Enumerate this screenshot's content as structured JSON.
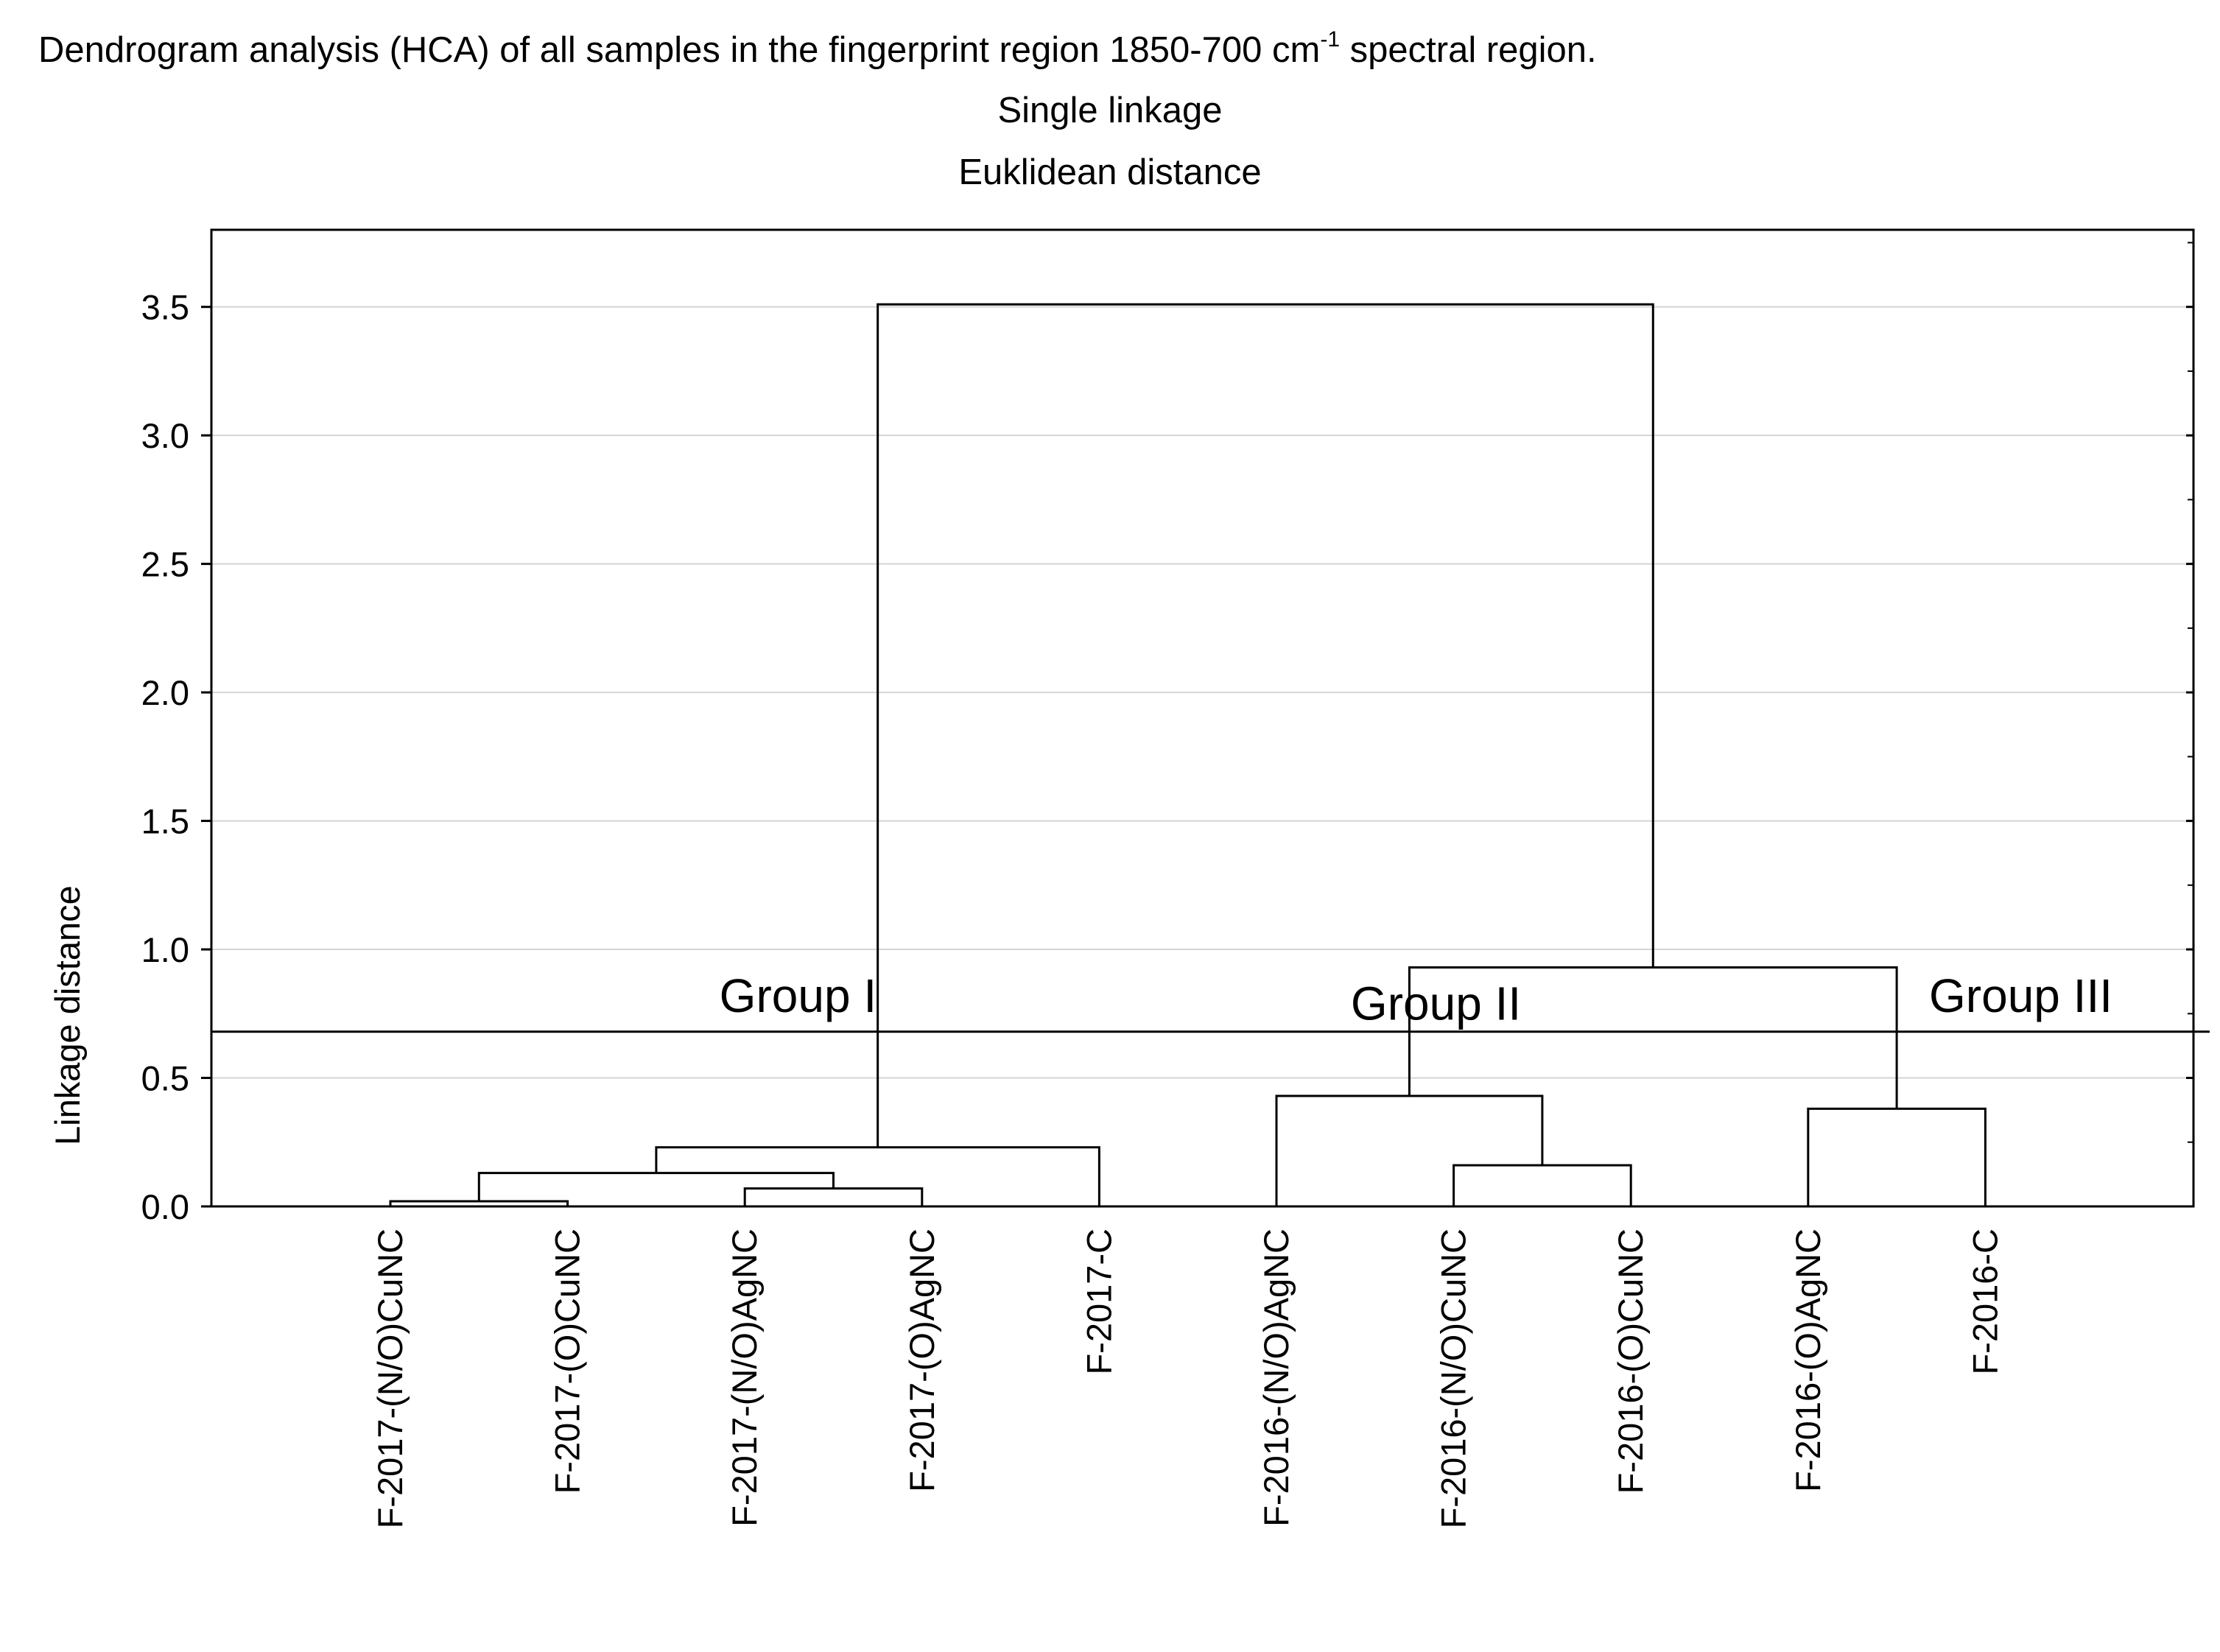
{
  "chart_data": {
    "type": "dendrogram",
    "title_main": "Dendrogram analysis (HCA)  of all samples in the fingerprint region 1850-700 cm",
    "title_sup": "-1",
    "title_tail": " spectral region.",
    "subtitle_1": "Single linkage",
    "subtitle_2": "Euklidean distance",
    "ylabel": "Linkage distance",
    "ylim": [
      0,
      3.8
    ],
    "yticks": [
      "0.0",
      "0.5",
      "1.0",
      "1.5",
      "2.0",
      "2.5",
      "3.0",
      "3.5"
    ],
    "ytick_values": [
      0,
      0.5,
      1.0,
      1.5,
      2.0,
      2.5,
      3.0,
      3.5
    ],
    "grid": true,
    "leaves": [
      "F-2017-(N/O)CuNC",
      "F-2017-(O)CuNC",
      "F-2017-(N/O)AgNC",
      "F-2017-(O)AgNC",
      "F-2017-C",
      "F-2016-(N/O)AgNC",
      "F-2016-(N/O)CuNC",
      "F-2016-(O)CuNC",
      "F-2016-(O)AgNC",
      "F-2016-C"
    ],
    "merges": [
      {
        "a": "L0",
        "b": "L1",
        "height": 0.02,
        "id": "M0"
      },
      {
        "a": "L2",
        "b": "L3",
        "height": 0.07,
        "id": "M1"
      },
      {
        "a": "M0",
        "b": "M1",
        "height": 0.13,
        "id": "M2"
      },
      {
        "a": "M2",
        "b": "L4",
        "height": 0.23,
        "id": "M3"
      },
      {
        "a": "L6",
        "b": "L7",
        "height": 0.16,
        "id": "M4"
      },
      {
        "a": "L5",
        "b": "M4",
        "height": 0.43,
        "id": "M5"
      },
      {
        "a": "L8",
        "b": "L9",
        "height": 0.38,
        "id": "M6"
      },
      {
        "a": "M5",
        "b": "M6",
        "height": 0.93,
        "id": "M7"
      },
      {
        "a": "M3",
        "b": "M7",
        "height": 3.51,
        "id": "M8"
      }
    ],
    "cutoff": 0.68,
    "groups": [
      {
        "label": "Group I",
        "anchor_leaf": 2.3,
        "y": 0.82
      },
      {
        "label": "Group II",
        "anchor_leaf": 5.9,
        "y": 0.79
      },
      {
        "label": "Group III",
        "anchor_leaf": 9.2,
        "y": 0.82
      }
    ]
  }
}
